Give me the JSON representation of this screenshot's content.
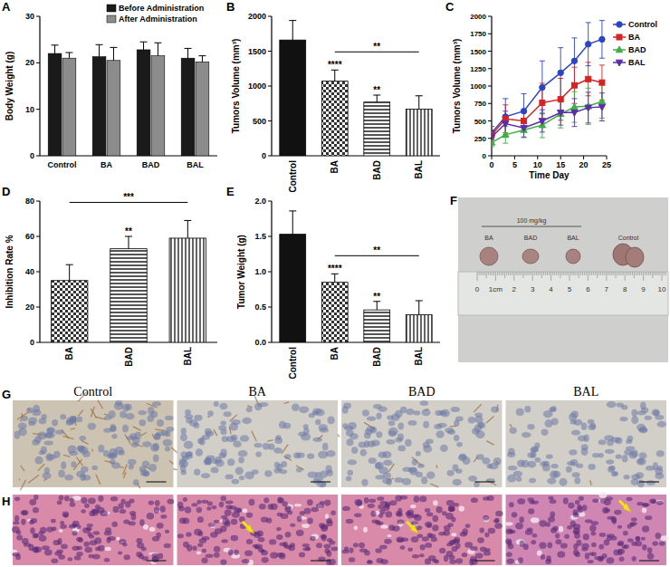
{
  "chart_data": [
    {
      "title": "A",
      "type": "bar",
      "y_label": "Body Weight (g)",
      "categories": [
        "Control",
        "BA",
        "BAD",
        "BAL"
      ],
      "ylim": [
        0,
        30
      ],
      "yticks": [
        0,
        10,
        20,
        30
      ],
      "legend": "top-right",
      "series": [
        {
          "name": "Before Administration",
          "color": "#1a1a1a",
          "values": [
            22.0,
            21.3,
            22.8,
            21.0
          ],
          "errors": [
            1.8,
            2.6,
            1.7,
            2.1
          ]
        },
        {
          "name": "After Administration",
          "color": "#8c8c8c",
          "values": [
            21.0,
            20.5,
            21.5,
            20.2
          ],
          "errors": [
            1.2,
            2.8,
            2.8,
            1.3
          ]
        }
      ]
    },
    {
      "title": "B",
      "type": "bar",
      "y_label": "Tumors Volume (mm³)",
      "categories": [
        "Control",
        "BA",
        "BAD",
        "BAL"
      ],
      "values": [
        1660,
        1070,
        770,
        670
      ],
      "errors": [
        280,
        160,
        100,
        190
      ],
      "colors": [
        "#111111",
        "#333333",
        "#555555",
        "#666666"
      ],
      "ylim": [
        0,
        2000
      ],
      "yticks": [
        0,
        500,
        1000,
        1500,
        2000
      ],
      "annotations": [
        {
          "text": "****",
          "category": "BA"
        },
        {
          "text": "**",
          "category": "BAD"
        },
        {
          "text": "**",
          "categories": [
            "BA",
            "BAL"
          ]
        }
      ]
    },
    {
      "title": "C",
      "type": "line",
      "x_label": "Time Day",
      "y_label": "Tumors Volume (mm³)",
      "x": [
        0,
        3,
        7,
        11,
        15,
        18,
        21,
        24
      ],
      "xlim": [
        0,
        25
      ],
      "xticks": [
        0,
        5,
        10,
        15,
        20,
        25
      ],
      "ylim": [
        0,
        2000
      ],
      "yticks": [
        0,
        250,
        500,
        750,
        1000,
        1250,
        1500,
        1750,
        2000
      ],
      "legend": "right",
      "series": [
        {
          "name": "Control",
          "color": "#2a45c4",
          "marker": "circle",
          "values": [
            330,
            560,
            640,
            980,
            1190,
            1360,
            1600,
            1670
          ],
          "errors": [
            90,
            260,
            250,
            380,
            360,
            330,
            310,
            270
          ]
        },
        {
          "name": "BA",
          "color": "#d42424",
          "marker": "square",
          "values": [
            300,
            530,
            500,
            760,
            810,
            1010,
            1100,
            1050
          ],
          "errors": [
            70,
            200,
            160,
            280,
            300,
            260,
            240,
            250
          ]
        },
        {
          "name": "BAD",
          "color": "#3cb043",
          "marker": "triangle",
          "values": [
            190,
            300,
            370,
            440,
            600,
            700,
            710,
            780
          ],
          "errors": [
            60,
            120,
            110,
            180,
            200,
            220,
            260,
            240
          ]
        },
        {
          "name": "BAL",
          "color": "#5b2ea8",
          "marker": "triangle-down",
          "values": [
            270,
            460,
            400,
            500,
            620,
            620,
            690,
            700
          ],
          "errors": [
            80,
            180,
            130,
            160,
            180,
            200,
            220,
            200
          ]
        }
      ]
    },
    {
      "title": "D",
      "type": "bar",
      "y_label": "Inhibition Rate %",
      "categories": [
        "BA",
        "BAD",
        "BAL"
      ],
      "values": [
        35,
        53,
        59
      ],
      "errors": [
        9,
        7,
        10
      ],
      "colors": [
        "#333333",
        "#555555",
        "#666666"
      ],
      "ylim": [
        0,
        80
      ],
      "yticks": [
        0,
        20,
        40,
        60,
        80
      ],
      "annotations": [
        {
          "text": "**",
          "category": "BAD"
        },
        {
          "text": "***",
          "categories": [
            "BA",
            "BAL"
          ]
        }
      ]
    },
    {
      "title": "E",
      "type": "bar",
      "y_label": "Tumor Weight (g)",
      "categories": [
        "Control",
        "BA",
        "BAD",
        "BAL"
      ],
      "values": [
        1.53,
        0.85,
        0.46,
        0.39
      ],
      "errors": [
        0.33,
        0.12,
        0.12,
        0.2
      ],
      "colors": [
        "#111111",
        "#333333",
        "#555555",
        "#666666"
      ],
      "ylim": [
        0,
        2
      ],
      "yticks": [
        {
          "value": 0,
          "label": "0.0"
        },
        {
          "value": 0.5,
          "label": "0.5"
        },
        {
          "value": 1,
          "label": "1.0"
        },
        {
          "value": 1.5,
          "label": "1.5"
        },
        {
          "value": 2,
          "label": "2.0"
        }
      ],
      "annotations": [
        {
          "text": "****",
          "category": "BA"
        },
        {
          "text": "**",
          "category": "BAD"
        },
        {
          "text": "**",
          "categories": [
            "BA",
            "BAL"
          ]
        }
      ]
    }
  ],
  "panels": {
    "F": {
      "label": "F",
      "dose": "100 mg/kg",
      "tumor_labels": [
        "BA",
        "BAD",
        "BAL",
        "Control"
      ],
      "ruler_labels": [
        "0",
        "1cm",
        "2",
        "3",
        "4",
        "5",
        "6",
        "7",
        "8",
        "9",
        "10"
      ]
    },
    "G": {
      "label": "G",
      "columns": [
        "Control",
        "BA",
        "BAD",
        "BAL"
      ]
    },
    "H": {
      "label": "H"
    }
  }
}
